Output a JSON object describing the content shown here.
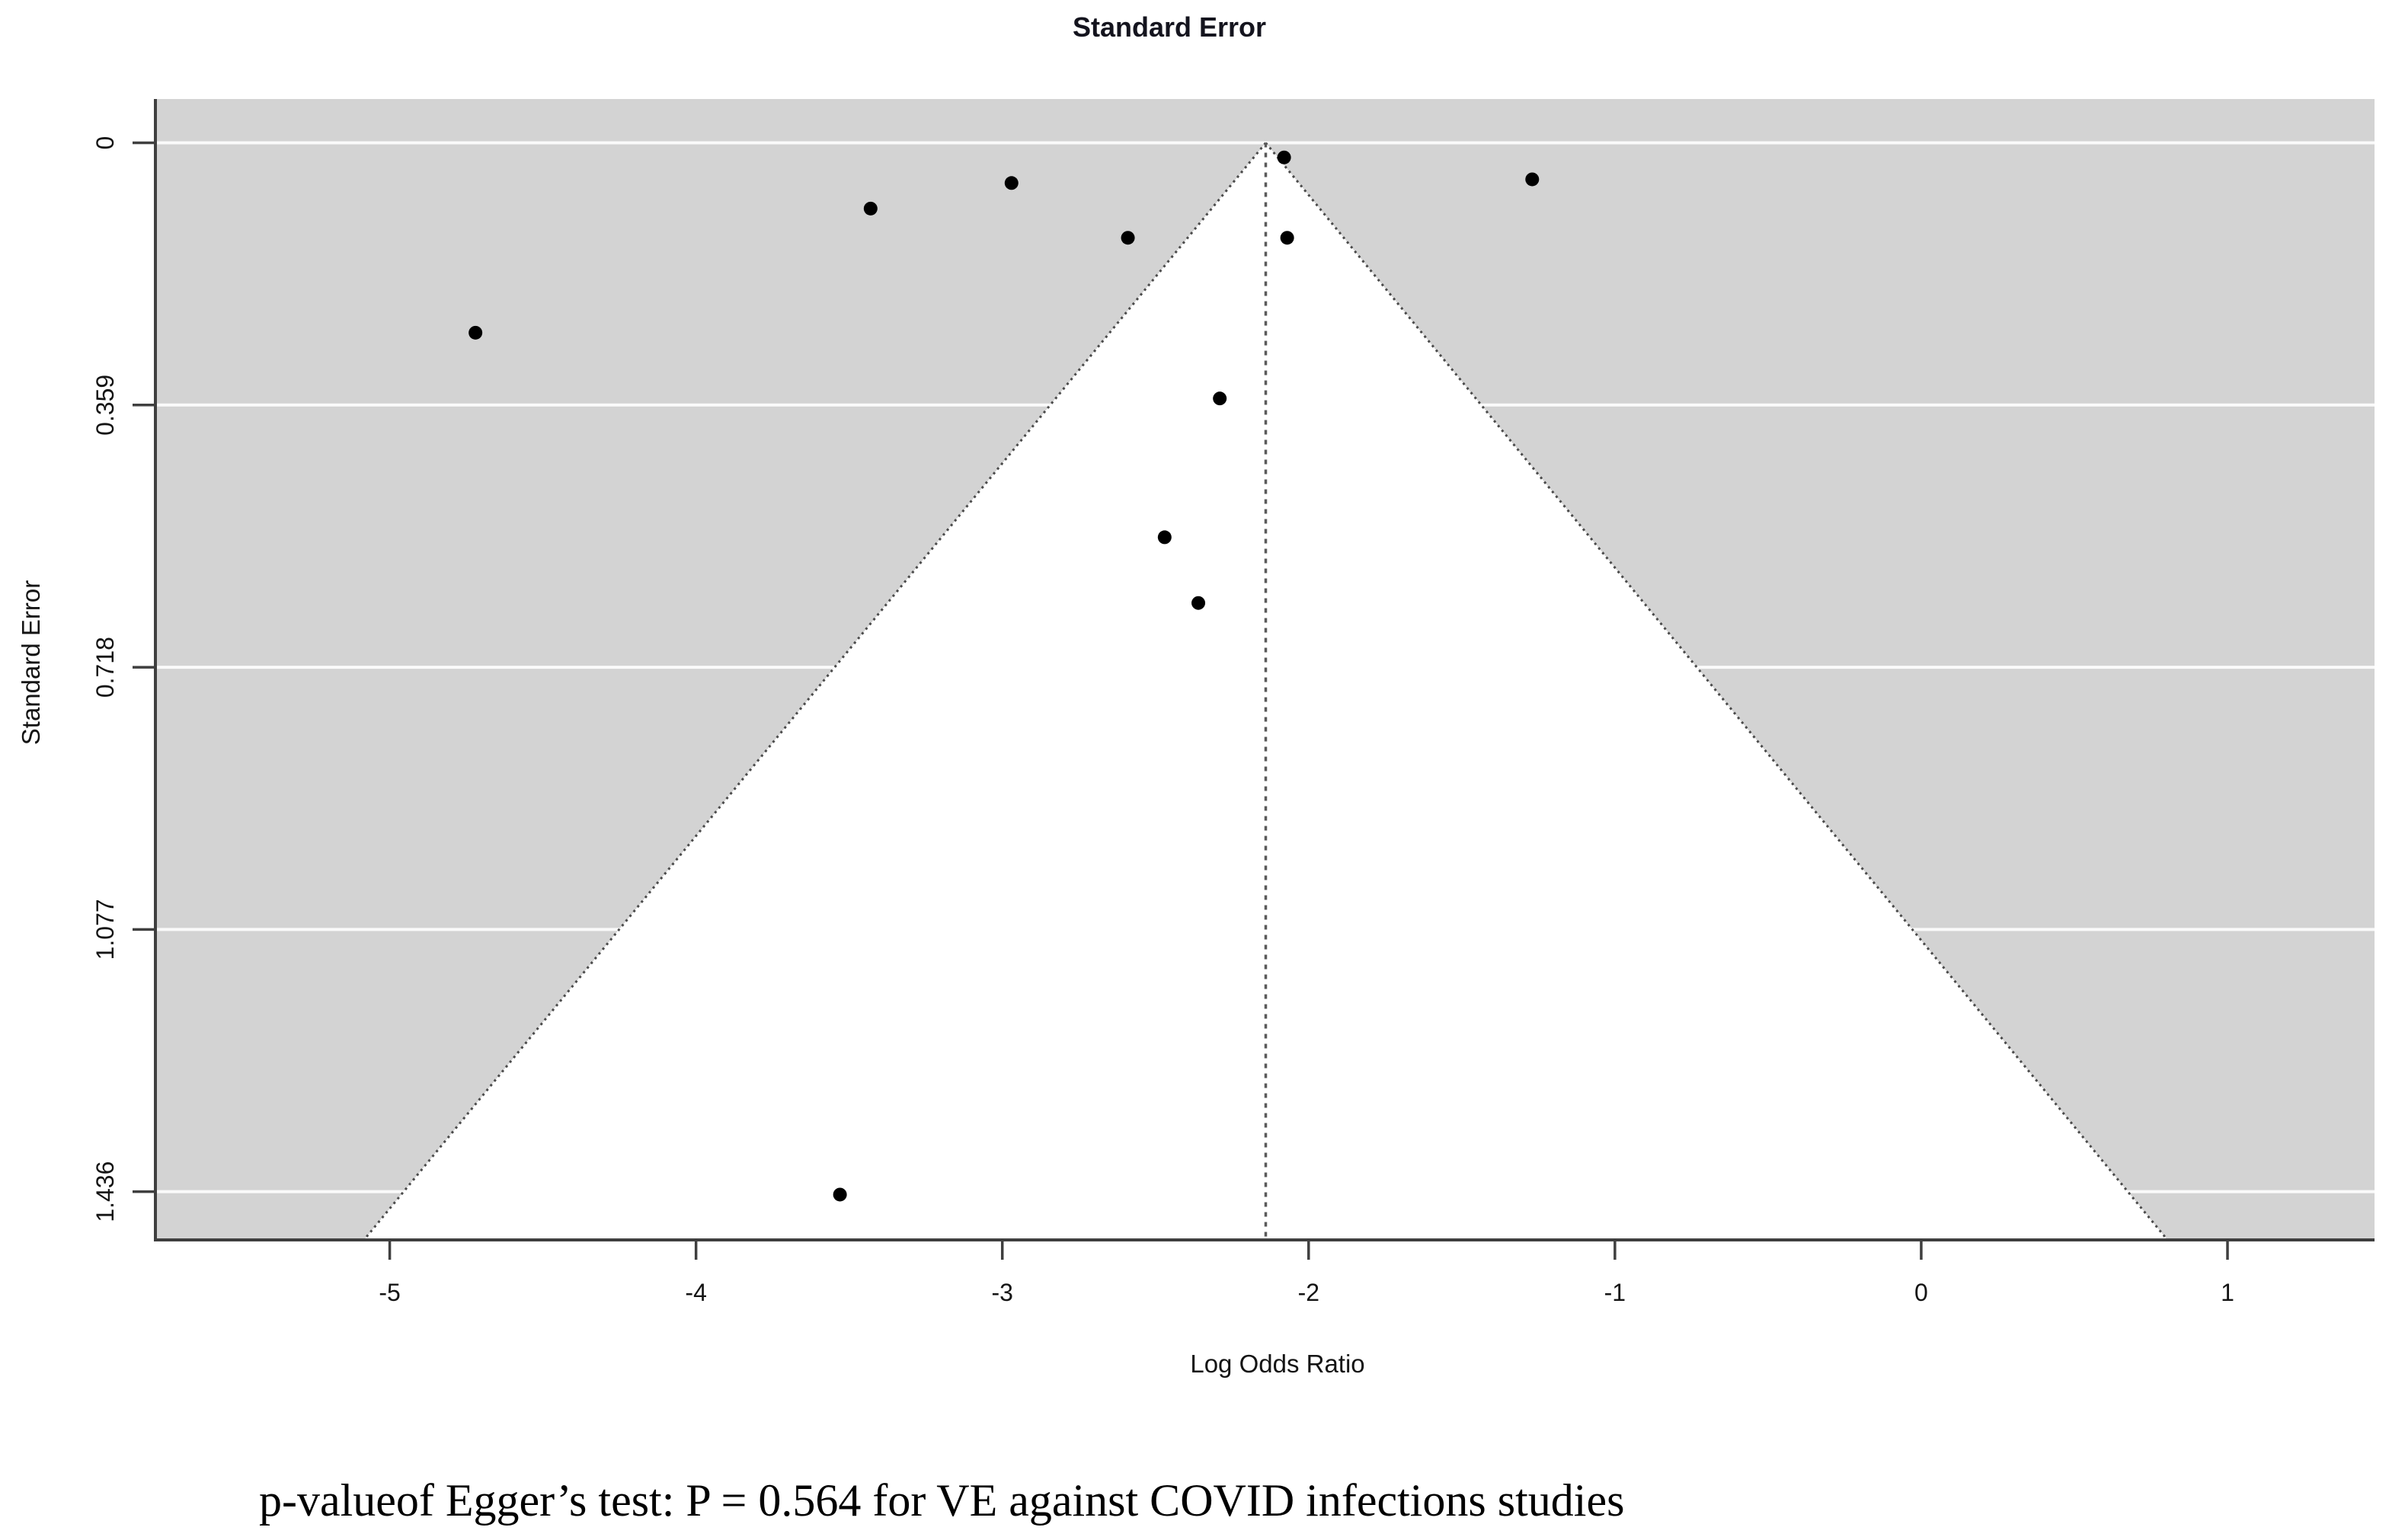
{
  "caption": {
    "text": "p-valueof Egger’s test: P = 0.564 for VE against COVID infections studies"
  },
  "chart_data": {
    "type": "scatter",
    "subtype": "funnel_plot",
    "title": "Standard Error",
    "xlabel": "Log Odds Ratio",
    "ylabel": "Standard Error",
    "x_ticks": [
      -5,
      -4,
      -3,
      -2,
      -1,
      0,
      1
    ],
    "y_ticks": [
      0,
      0.359,
      0.718,
      1.077,
      1.436
    ],
    "y_tick_labels": [
      "0",
      "0.359",
      "0.718",
      "1.077",
      "1.436"
    ],
    "xlim": [
      -5.76,
      1.48
    ],
    "ylim": [
      -0.06,
      1.5
    ],
    "y_axis_inverted": true,
    "grid": true,
    "legend": false,
    "series_name": "VE against COVID infections studies",
    "points": [
      {
        "log_odds_ratio": -4.72,
        "standard_error": 0.26
      },
      {
        "log_odds_ratio": -3.43,
        "standard_error": 0.09
      },
      {
        "log_odds_ratio": -2.97,
        "standard_error": 0.055
      },
      {
        "log_odds_ratio": -2.59,
        "standard_error": 0.13
      },
      {
        "log_odds_ratio": -2.08,
        "standard_error": 0.02
      },
      {
        "log_odds_ratio": -2.07,
        "standard_error": 0.13
      },
      {
        "log_odds_ratio": -1.27,
        "standard_error": 0.05
      },
      {
        "log_odds_ratio": -2.29,
        "standard_error": 0.35
      },
      {
        "log_odds_ratio": -2.47,
        "standard_error": 0.54
      },
      {
        "log_odds_ratio": -2.36,
        "standard_error": 0.63
      },
      {
        "log_odds_ratio": -3.53,
        "standard_error": 1.44
      }
    ],
    "funnel": {
      "center_estimate": -2.14,
      "apex_se": 0,
      "max_se": 1.5,
      "ci_multiplier": 1.96,
      "edge_style": "dotted",
      "center_line_style": "dotted"
    },
    "colors": {
      "plot_background": "#d3d3d3",
      "funnel_fill": "#ffffff",
      "gridline": "#fafafa",
      "axis": "#3f3f3f",
      "tick": "#3f3f3f",
      "funnel_edge": "#4a4a4a",
      "center_line": "#5a5a5a",
      "point": "#000000",
      "text": "#141414"
    }
  }
}
